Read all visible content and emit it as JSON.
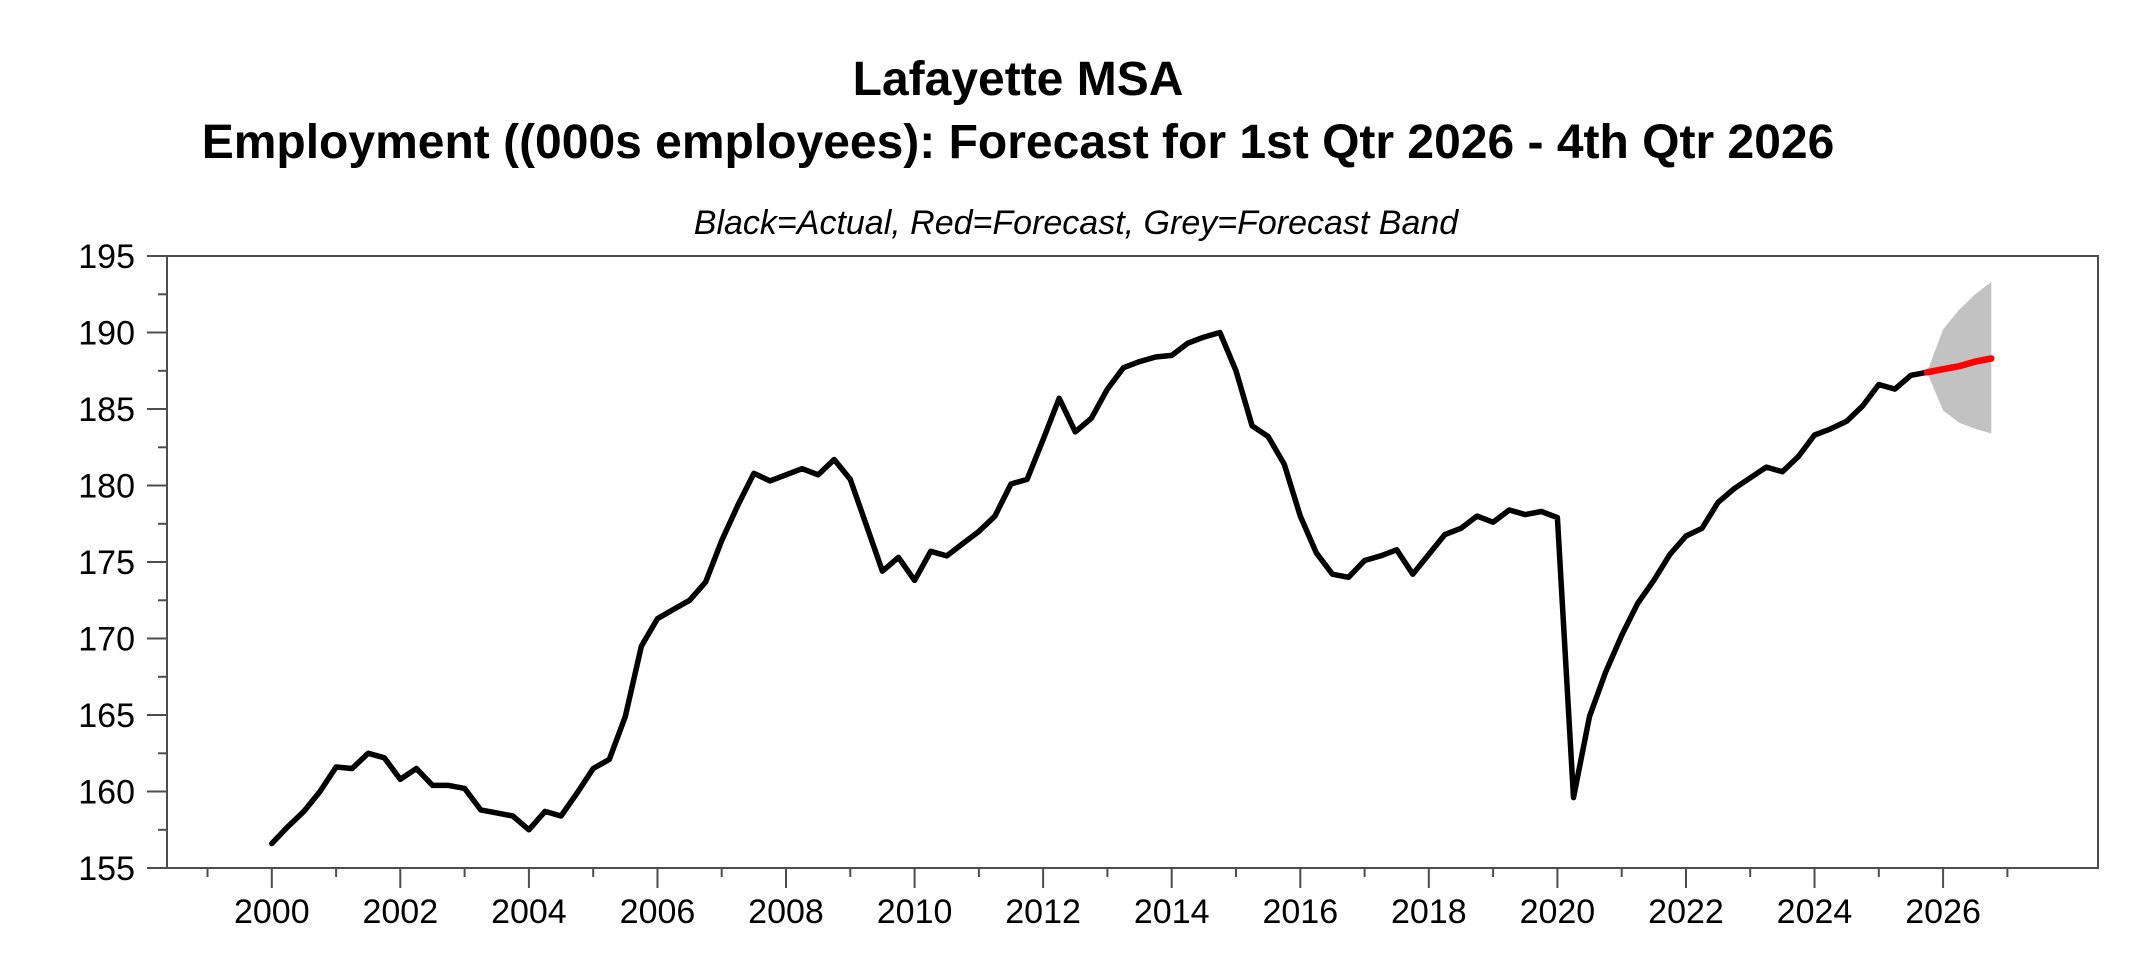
{
  "title": {
    "line1": "Lafayette MSA",
    "line2": "Employment ((000s employees): Forecast for 1st Qtr 2026 - 4th Qtr 2026"
  },
  "subtitle": "Black=Actual, Red=Forecast, Grey=Forecast Band",
  "colors": {
    "actual_line": "#000000",
    "forecast_line": "#FF0000",
    "forecast_band": "#C2C2C2",
    "axis_frame": "#4d4d4d",
    "text": "#000000",
    "background": "#FFFFFF"
  },
  "chart_data": {
    "type": "line",
    "title": "Lafayette MSA — Employment ((000s employees): Forecast for 1st Qtr 2026 - 4th Qtr 2026",
    "legend_note": "Black=Actual, Red=Forecast, Grey=Forecast Band",
    "xlabel": "",
    "ylabel": "Employment (000s employees)",
    "grid": false,
    "x_axis": {
      "range": [
        1998.37,
        2028.41
      ],
      "major_ticks": [
        2000,
        2002,
        2004,
        2006,
        2008,
        2010,
        2012,
        2014,
        2016,
        2018,
        2020,
        2022,
        2024,
        2026
      ],
      "tick_labels": [
        "2000",
        "2002",
        "2004",
        "2006",
        "2008",
        "2010",
        "2012",
        "2014",
        "2016",
        "2018",
        "2020",
        "2022",
        "2024",
        "2026"
      ],
      "minor_ticks": [
        1999,
        2001,
        2003,
        2005,
        2007,
        2009,
        2011,
        2013,
        2015,
        2017,
        2019,
        2021,
        2023,
        2025,
        2027
      ]
    },
    "y_axis": {
      "range": [
        155,
        195
      ],
      "major_ticks": [
        155,
        160,
        165,
        170,
        175,
        180,
        185,
        190,
        195
      ],
      "tick_labels": [
        "155",
        "160",
        "165",
        "170",
        "175",
        "180",
        "185",
        "190",
        "195"
      ],
      "minor_ticks": [
        157.5,
        162.5,
        167.5,
        172.5,
        177.5,
        182.5,
        187.5,
        192.5
      ]
    },
    "series": [
      {
        "name": "Actual",
        "color": "#000000",
        "x_start": 2000.0,
        "x_step": 0.25,
        "values": [
          156.6,
          157.7,
          158.7,
          160.0,
          161.6,
          161.5,
          162.5,
          162.2,
          160.8,
          161.5,
          160.4,
          160.4,
          160.2,
          158.8,
          158.6,
          158.4,
          157.5,
          158.7,
          158.4,
          159.9,
          161.5,
          162.1,
          164.9,
          169.5,
          171.3,
          171.9,
          172.5,
          173.7,
          176.4,
          178.7,
          180.8,
          180.3,
          180.7,
          181.1,
          180.7,
          181.7,
          180.4,
          177.4,
          174.4,
          175.3,
          173.8,
          175.7,
          175.4,
          176.2,
          177.0,
          178.0,
          180.1,
          180.4,
          183.0,
          185.7,
          183.5,
          184.4,
          186.3,
          187.7,
          188.1,
          188.4,
          188.5,
          189.3,
          189.7,
          190.0,
          187.5,
          183.9,
          183.2,
          181.4,
          178.0,
          175.6,
          174.2,
          174.0,
          175.1,
          175.4,
          175.8,
          174.2,
          175.5,
          176.8,
          177.2,
          178.0,
          177.6,
          178.4,
          178.1,
          178.3,
          177.9,
          159.6,
          164.9,
          167.8,
          170.2,
          172.3,
          173.8,
          175.5,
          176.7,
          177.2,
          178.9,
          179.8,
          180.5,
          181.2,
          180.9,
          181.9,
          183.3,
          183.7,
          184.2,
          185.2,
          186.6,
          186.3,
          187.2,
          187.4
        ]
      },
      {
        "name": "Forecast",
        "color": "#FF0000",
        "x": [
          2025.75,
          2026.0,
          2026.25,
          2026.5,
          2026.75
        ],
        "values": [
          187.4,
          187.6,
          187.8,
          188.1,
          188.3
        ]
      },
      {
        "name": "Forecast Band",
        "color": "#C2C2C2",
        "x": [
          2025.75,
          2026.0,
          2026.25,
          2026.5,
          2026.75
        ],
        "upper": [
          187.4,
          190.2,
          191.5,
          192.5,
          193.3
        ],
        "lower": [
          187.4,
          184.9,
          184.1,
          183.7,
          183.4
        ]
      }
    ]
  }
}
